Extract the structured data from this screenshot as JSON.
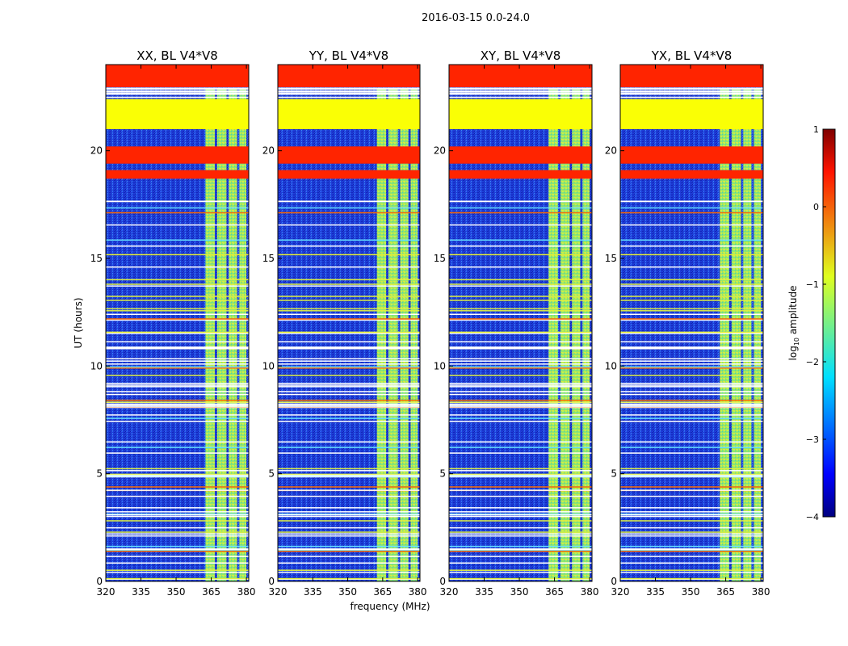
{
  "chart_data": {
    "type": "heatmap",
    "suptitle": "2016-03-15 0.0-24.0",
    "xlabel": "frequency (MHz)",
    "ylabel": "UT (hours)",
    "xlim": [
      320,
      381
    ],
    "ylim": [
      0,
      24
    ],
    "xticks": [
      "320",
      "335",
      "350",
      "365",
      "380"
    ],
    "yticks": [
      "0",
      "5",
      "10",
      "15",
      "20"
    ],
    "colorbar": {
      "label": "log10 amplitude",
      "label_base": "log",
      "label_sub": "10",
      "label_rest": " amplitude",
      "range": [
        -4,
        1
      ],
      "ticks": [
        "1",
        "0",
        "−1",
        "−2",
        "−3",
        "−4"
      ]
    },
    "colors": {
      "background_blue": "#1e3cd8",
      "flagged_orange": "#ff6a00",
      "flagged_green": "#99ff55",
      "signal_green": "#8ee66f"
    },
    "bands": [
      {
        "name": "flagged-band",
        "t0": 22.95,
        "t1": 24.0,
        "value": 0.2
      },
      {
        "name": "flagged-band",
        "t0": 21.0,
        "t1": 22.4,
        "value": -0.9
      },
      {
        "name": "flagged-band",
        "t0": 19.4,
        "t1": 20.2,
        "value": 0.2
      },
      {
        "name": "flagged-band",
        "t0": 18.7,
        "t1": 19.1,
        "value": 0.2
      }
    ],
    "signal_columns_mhz": [
      {
        "f0": 362.5,
        "f1": 366.5
      },
      {
        "f0": 367.5,
        "f1": 371.5
      },
      {
        "f0": 372.5,
        "f1": 376.0
      },
      {
        "f0": 377.0,
        "f1": 380.0
      }
    ],
    "panels": [
      {
        "title": "XX, BL V4*V8"
      },
      {
        "title": "YY, BL V4*V8"
      },
      {
        "title": "XY, BL V4*V8"
      },
      {
        "title": "YX, BL V4*V8"
      }
    ]
  }
}
